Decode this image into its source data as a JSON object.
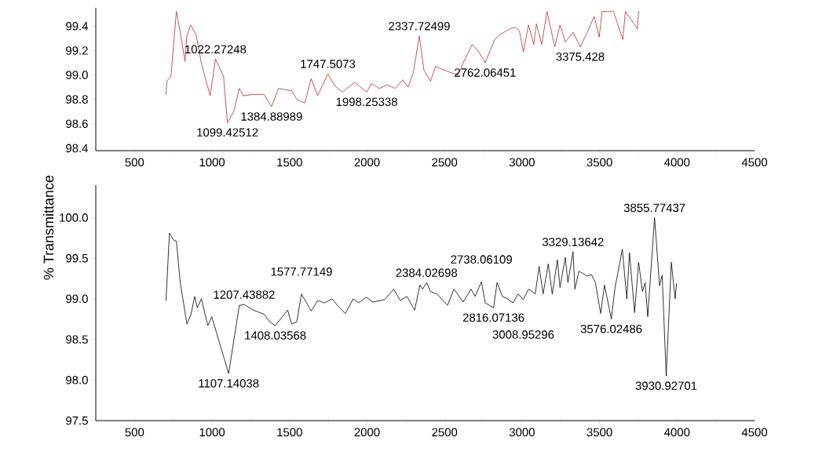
{
  "chart_data": [
    {
      "type": "line",
      "xlim": [
        250,
        4500
      ],
      "xticks": [
        500,
        1000,
        1500,
        2000,
        2500,
        3000,
        3500,
        4000,
        4500
      ],
      "ylim": [
        98.38,
        99.55
      ],
      "yticks": [
        98.4,
        98.6,
        98.8,
        {
          "value": 99,
          "label": "99.0"
        },
        99.2,
        99.4
      ],
      "series": [
        {
          "color": "#c0272d",
          "x": [
            703,
            709,
            735,
            770,
            795,
            826,
            836,
            861,
            897,
            932,
            988,
            1022,
            1074,
            1099,
            1140,
            1176,
            1201,
            1268,
            1336,
            1384,
            1429,
            1514,
            1547,
            1598,
            1640,
            1682,
            1747,
            1792,
            1843,
            1919,
            1998,
            2029,
            2078,
            2130,
            2181,
            2231,
            2265,
            2299,
            2337,
            2367,
            2409,
            2443,
            2519,
            2586,
            2620,
            2679,
            2721,
            2762,
            2823,
            2857,
            2924,
            2958,
            2983,
            3009,
            3042,
            3076,
            3093,
            3127,
            3161,
            3211,
            3245,
            3279,
            3330,
            3375,
            3414,
            3465,
            3498,
            3516,
            3590,
            3650,
            3667,
            3744,
            3752
          ],
          "values": [
            98.84,
            98.95,
            98.99,
            99.52,
            99.35,
            99.11,
            99.31,
            99.41,
            99.33,
            99.09,
            98.83,
            99.13,
            98.99,
            98.61,
            98.7,
            98.89,
            98.83,
            98.84,
            98.84,
            98.74,
            98.89,
            98.87,
            98.8,
            98.77,
            98.97,
            98.83,
            99.01,
            98.91,
            98.86,
            98.94,
            98.86,
            98.93,
            98.89,
            98.92,
            98.89,
            98.96,
            98.9,
            99.02,
            99.32,
            99.04,
            98.95,
            99.07,
            99.03,
            99.0,
            99.1,
            99.25,
            99.19,
            99.1,
            99.29,
            99.33,
            99.38,
            99.39,
            99.36,
            99.19,
            99.41,
            99.25,
            99.42,
            99.25,
            99.52,
            99.23,
            99.41,
            99.27,
            99.35,
            99.23,
            99.33,
            99.48,
            99.31,
            99.52,
            99.52,
            99.29,
            99.52,
            99.38,
            99.52
          ]
        }
      ],
      "annotations": [
        {
          "text": "1022.27248",
          "x": 1022,
          "y": 99.13
        },
        {
          "text": "1099.42512",
          "x": 1099,
          "y": 98.61
        },
        {
          "text": "1384.88989",
          "x": 1384,
          "y": 98.74
        },
        {
          "text": "1747.5073",
          "x": 1747,
          "y": 99.01
        },
        {
          "text": "1998.25338",
          "x": 1998,
          "y": 98.86
        },
        {
          "text": "2337.72499",
          "x": 2337,
          "y": 99.32
        },
        {
          "text": "2762.06451",
          "x": 2762,
          "y": 99.1
        },
        {
          "text": "3375.428",
          "x": 3375,
          "y": 99.23
        }
      ]
    },
    {
      "type": "line",
      "ylabel": "% Transmittance",
      "xlim": [
        250,
        4500
      ],
      "xticks": [
        500,
        1000,
        1500,
        2000,
        2500,
        3000,
        3500,
        4000,
        4500
      ],
      "ylim": [
        97.5,
        100.4
      ],
      "yticks": [
        97.5,
        {
          "value": 98,
          "label": "98.0"
        },
        98.5,
        {
          "value": 99,
          "label": "99.0"
        },
        99.5,
        {
          "value": 100,
          "label": "100.0"
        }
      ],
      "series": [
        {
          "color": "#000000",
          "x": [
            703,
            725,
            753,
            770,
            795,
            838,
            863,
            888,
            905,
            931,
            973,
            998,
            1107,
            1176,
            1207,
            1268,
            1336,
            1370,
            1408,
            1454,
            1488,
            1514,
            1547,
            1577,
            1640,
            1682,
            1725,
            1775,
            1809,
            1860,
            1911,
            1944,
            1995,
            2037,
            2113,
            2172,
            2214,
            2257,
            2307,
            2341,
            2358,
            2384,
            2409,
            2451,
            2519,
            2561,
            2620,
            2671,
            2697,
            2738,
            2763,
            2816,
            2839,
            2873,
            2907,
            2941,
            2975,
            3008,
            3042,
            3085,
            3110,
            3136,
            3169,
            3195,
            3228,
            3245,
            3279,
            3296,
            3329,
            3341,
            3367,
            3422,
            3447,
            3473,
            3507,
            3532,
            3576,
            3600,
            3647,
            3676,
            3693,
            3726,
            3752,
            3777,
            3794,
            3811,
            3855,
            3887,
            3904,
            3930,
            3963,
            3988,
            3997
          ],
          "values": [
            98.98,
            99.81,
            99.72,
            99.71,
            99.2,
            98.69,
            98.8,
            99.03,
            98.89,
            99.0,
            98.67,
            98.78,
            98.08,
            98.92,
            98.93,
            98.86,
            98.81,
            98.72,
            98.67,
            98.78,
            98.86,
            98.69,
            98.72,
            99.06,
            98.85,
            98.98,
            98.95,
            99.0,
            98.92,
            98.82,
            99.0,
            98.95,
            99.02,
            98.96,
            98.99,
            99.12,
            98.98,
            99.03,
            98.86,
            99.17,
            99.12,
            99.2,
            99.09,
            99.06,
            98.92,
            99.12,
            98.96,
            99.12,
            99.03,
            99.21,
            98.95,
            98.89,
            99.2,
            99.03,
            99.0,
            98.95,
            99.06,
            98.99,
            99.12,
            99.06,
            99.4,
            99.06,
            99.43,
            99.06,
            99.48,
            99.14,
            99.51,
            99.2,
            99.58,
            99.12,
            99.34,
            99.28,
            99.3,
            99.2,
            98.82,
            99.17,
            98.75,
            99.14,
            99.61,
            99.0,
            99.57,
            98.83,
            99.45,
            99.09,
            99.2,
            98.78,
            100.0,
            99.16,
            99.29,
            98.05,
            99.45,
            99.0,
            99.19
          ]
        }
      ],
      "annotations": [
        {
          "text": "1107.14038",
          "x": 1107,
          "y": 98.08
        },
        {
          "text": "1207.43882",
          "x": 1207,
          "y": 98.93
        },
        {
          "text": "1408.03568",
          "x": 1408,
          "y": 98.67
        },
        {
          "text": "1577.77149",
          "x": 1577,
          "y": 99.06
        },
        {
          "text": "2384.02698",
          "x": 2384,
          "y": 99.2
        },
        {
          "text": "2738.06109",
          "x": 2738,
          "y": 99.21
        },
        {
          "text": "2816.07136",
          "x": 2816,
          "y": 98.89
        },
        {
          "text": "3008.95296",
          "x": 3008,
          "y": 98.99
        },
        {
          "text": "3329.13642",
          "x": 3329,
          "y": 99.58
        },
        {
          "text": "3576.02486",
          "x": 3576,
          "y": 98.75
        },
        {
          "text": "3855.77437",
          "x": 3855,
          "y": 100.0
        },
        {
          "text": "3930.92701",
          "x": 3930,
          "y": 98.05
        }
      ]
    }
  ]
}
